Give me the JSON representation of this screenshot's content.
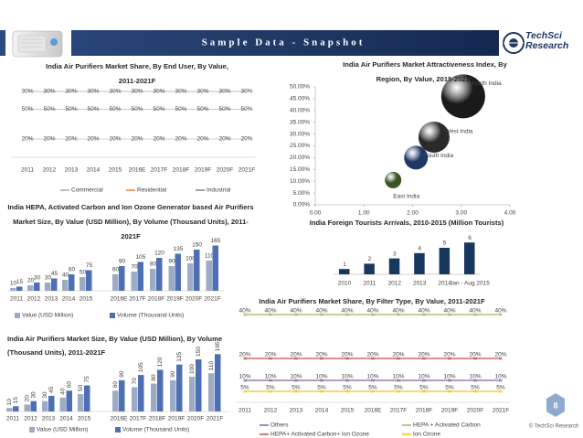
{
  "header": {
    "title": "Sample Data - Snapshot",
    "brand": "TechSci Research",
    "copyright": "© TechSci Research",
    "page": "8"
  },
  "chart_data": [
    {
      "type": "line",
      "title": "India Air Purifiers Market Share, By End User, By Value, 2011-2021F",
      "stacked": true,
      "categories": [
        "2011",
        "2012",
        "2013",
        "2014",
        "2015",
        "2016E",
        "2017F",
        "2018F",
        "2019F",
        "2020F",
        "2021F"
      ],
      "series": [
        {
          "name": "Commercial",
          "color": "#a5a5a5",
          "values": [
            20,
            20,
            20,
            20,
            20,
            20,
            20,
            20,
            20,
            20,
            20
          ],
          "value_labels": [
            "20%",
            "20%",
            "20%",
            "20%",
            "20%",
            "20%",
            "20%",
            "20%",
            "20%",
            "20%",
            "20%"
          ]
        },
        {
          "name": "Residential",
          "color": "#ed7d31",
          "values": [
            50,
            50,
            50,
            50,
            50,
            50,
            50,
            50,
            50,
            50,
            50
          ],
          "value_labels": [
            "50%",
            "50%",
            "50%",
            "50%",
            "50%",
            "50%",
            "50%",
            "50%",
            "50%",
            "50%",
            "50%"
          ]
        },
        {
          "name": "Industrial",
          "color": "#7f7f7f",
          "values": [
            30,
            30,
            30,
            30,
            30,
            30,
            30,
            30,
            30,
            30,
            30
          ],
          "value_labels": [
            "30%",
            "30%",
            "30%",
            "30%",
            "30%",
            "30%",
            "30%",
            "30%",
            "30%",
            "30%",
            "30%"
          ]
        }
      ]
    },
    {
      "type": "bubble",
      "title": "India Air Purifiers Market Attractiveness Index, By Region, By Value, 2015-2021F",
      "xlim": [
        0,
        4
      ],
      "xticks": [
        {
          "value": 0,
          "label": "0.00"
        },
        {
          "value": 1,
          "label": "1.00"
        },
        {
          "value": 2,
          "label": "2.00"
        },
        {
          "value": 3,
          "label": "3.00"
        },
        {
          "value": 4,
          "label": "4.00"
        }
      ],
      "ylim": [
        0,
        50
      ],
      "yticks": [
        {
          "value": 0,
          "label": "0.00%"
        },
        {
          "value": 5,
          "label": "5.00%"
        },
        {
          "value": 10,
          "label": "10.00%"
        },
        {
          "value": 15,
          "label": "15.00%"
        },
        {
          "value": 20,
          "label": "20.00%"
        },
        {
          "value": 25,
          "label": "25.00%"
        },
        {
          "value": 30,
          "label": "30.00%"
        },
        {
          "value": 35,
          "label": "35.00%"
        },
        {
          "value": 40,
          "label": "40.00%"
        },
        {
          "value": 45,
          "label": "45.00%"
        },
        {
          "value": 50,
          "label": "50.00%"
        }
      ],
      "points": [
        {
          "name": "North India",
          "x": 3.04,
          "y": 46,
          "size": 24,
          "color": "#1a1a1a"
        },
        {
          "name": "West India",
          "x": 2.44,
          "y": 28.7,
          "size": 17,
          "color": "#2a2a2a"
        },
        {
          "name": "South India",
          "x": 2.07,
          "y": 20,
          "size": 13,
          "color": "#1f3864"
        },
        {
          "name": "East India",
          "x": 1.6,
          "y": 10.5,
          "size": 9,
          "color": "#375623"
        }
      ]
    },
    {
      "type": "bar",
      "title": "India Foreign Tourists Arrivals, 2010-2015 (Million Tourists)",
      "categories": [
        "2010",
        "2011",
        "2012",
        "2013",
        "2014",
        "Jan - Aug 2015"
      ],
      "values": [
        1,
        2,
        3,
        4,
        5,
        6
      ],
      "color": "#17375e"
    },
    {
      "type": "bar",
      "title": "India HEPA, Activated Carbon and Ion Ozone Generator based Air Purifiers Market Size, By Value (USD Million), By Volume (Thousand Units), 2011-2021F",
      "categories": [
        "2011",
        "2012",
        "2013",
        "2014",
        "2015",
        "2016E",
        "2017F",
        "2018F",
        "2019F",
        "2020F",
        "2021F"
      ],
      "series": [
        {
          "name": "Value (USD Million)",
          "color": "#9dacc4",
          "values": [
            10,
            20,
            30,
            40,
            50,
            60,
            70,
            80,
            90,
            100,
            110
          ]
        },
        {
          "name": "Volume (Thousand Units)",
          "color": "#4f6fb5",
          "values": [
            15,
            30,
            45,
            60,
            75,
            90,
            105,
            120,
            135,
            150,
            165
          ]
        }
      ]
    },
    {
      "type": "bar",
      "title": "India Air Purifiers Market Size, By Value (USD Million), By Volume (Thousand Units), 2011-2021F",
      "categories": [
        "2011",
        "2012",
        "2013",
        "2014",
        "2015",
        "2016E",
        "2017F",
        "2018F",
        "2019F",
        "2020F",
        "2021F"
      ],
      "series": [
        {
          "name": "Value (USD Million)",
          "color": "#9dacc4",
          "values": [
            10,
            20,
            30,
            40,
            50,
            60,
            70,
            80,
            90,
            100,
            110
          ]
        },
        {
          "name": "Volume (Thousand Units)",
          "color": "#4f6fb5",
          "values": [
            15,
            30,
            45,
            60,
            75,
            90,
            105,
            120,
            135,
            150,
            165
          ]
        }
      ]
    },
    {
      "type": "line",
      "title": "India Air Purifiers Market Share, By Filter Type, By Value, 2011-2021F",
      "stacked": false,
      "categories": [
        "2011",
        "2012",
        "2013",
        "2014",
        "2015",
        "2016E",
        "2017F",
        "2018F",
        "2019F",
        "2020F",
        "2021F"
      ],
      "series": [
        {
          "name": "Others",
          "color": "#8064a2",
          "values": [
            10,
            10,
            10,
            10,
            10,
            10,
            10,
            10,
            10,
            10,
            10
          ],
          "value_labels": [
            "10%",
            "10%",
            "10%",
            "10%",
            "10%",
            "10%",
            "10%",
            "10%",
            "10%",
            "10%",
            "10%"
          ]
        },
        {
          "name": "HEPA + Activated Carbon",
          "color": "#9bbb59",
          "values": [
            40,
            40,
            40,
            40,
            40,
            40,
            40,
            40,
            40,
            40,
            40
          ],
          "value_labels": [
            "40%",
            "40%",
            "40%",
            "40%",
            "40%",
            "40%",
            "40%",
            "40%",
            "40%",
            "40%",
            "40%"
          ]
        },
        {
          "name": "HEPA+ Activated Carbon+ Ion Ozone",
          "color": "#c0504d",
          "values": [
            20,
            20,
            20,
            20,
            20,
            20,
            20,
            20,
            20,
            20,
            20
          ],
          "value_labels": [
            "20%",
            "20%",
            "20%",
            "20%",
            "20%",
            "20%",
            "20%",
            "20%",
            "20%",
            "20%",
            "20%"
          ]
        },
        {
          "name": "Ion Ozone",
          "color": "#f2c314",
          "values": [
            5,
            5,
            5,
            5,
            5,
            5,
            5,
            5,
            5,
            5,
            5
          ],
          "value_labels": [
            "5%",
            "5%",
            "5%",
            "5%",
            "5%",
            "5%",
            "5%",
            "5%",
            "5%",
            "5%",
            "5%"
          ]
        }
      ]
    }
  ]
}
